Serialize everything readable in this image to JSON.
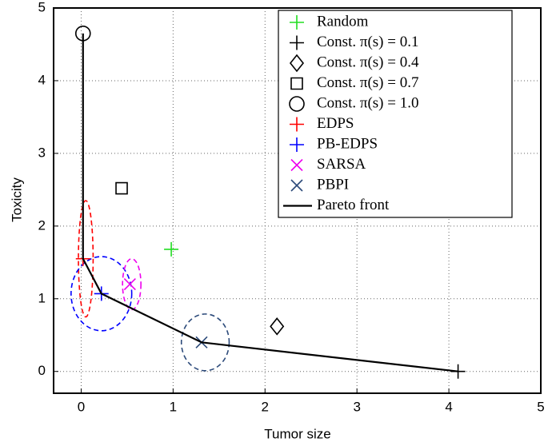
{
  "chart_data": {
    "type": "scatter",
    "xlabel": "Tumor size",
    "ylabel": "Toxicity",
    "xlim": [
      -0.3,
      5
    ],
    "ylim": [
      -0.3,
      5
    ],
    "xticks": [
      0,
      1,
      2,
      3,
      4,
      5
    ],
    "yticks": [
      0,
      1,
      2,
      3,
      4,
      5
    ],
    "grid": true,
    "legend": "upper right",
    "series": [
      {
        "name": "Random",
        "color": "#22dd22",
        "marker": "plus",
        "x": [
          0.98
        ],
        "y": [
          1.68
        ]
      },
      {
        "name": "Const. π(s) = 0.1",
        "color": "#000000",
        "marker": "plus",
        "x": [
          4.1
        ],
        "y": [
          0.0
        ]
      },
      {
        "name": "Const. π(s) = 0.4",
        "color": "#000000",
        "marker": "diamond",
        "x": [
          2.13
        ],
        "y": [
          0.62
        ]
      },
      {
        "name": "Const. π(s) = 0.7",
        "color": "#000000",
        "marker": "square",
        "x": [
          0.44
        ],
        "y": [
          2.52
        ]
      },
      {
        "name": "Const. π(s) = 1.0",
        "color": "#000000",
        "marker": "circle",
        "x": [
          0.02
        ],
        "y": [
          4.65
        ]
      },
      {
        "name": "EDPS",
        "color": "#ff0000",
        "marker": "plus",
        "x": [
          0.02
        ],
        "y": [
          1.55
        ],
        "ellipse": {
          "cx": 0.05,
          "cy": 1.55,
          "rx": 0.08,
          "ry": 0.8
        }
      },
      {
        "name": "PB-EDPS",
        "color": "#0000ff",
        "marker": "plus",
        "x": [
          0.22
        ],
        "y": [
          1.07
        ],
        "ellipse": {
          "cx": 0.22,
          "cy": 1.07,
          "rx": 0.33,
          "ry": 0.51
        }
      },
      {
        "name": "SARSA",
        "color": "#ee00ee",
        "marker": "x",
        "x": [
          0.53
        ],
        "y": [
          1.2
        ],
        "ellipse": {
          "cx": 0.55,
          "cy": 1.2,
          "rx": 0.1,
          "ry": 0.35
        }
      },
      {
        "name": "PBPI",
        "color": "#2c4a7a",
        "marker": "x",
        "x": [
          1.31
        ],
        "y": [
          0.4
        ],
        "ellipse": {
          "cx": 1.35,
          "cy": 0.4,
          "rx": 0.26,
          "ry": 0.39
        }
      },
      {
        "name": "Pareto front",
        "color": "#000000",
        "marker": "line",
        "x": [
          0.02,
          0.02,
          0.22,
          1.31,
          4.1
        ],
        "y": [
          4.65,
          1.55,
          1.07,
          0.4,
          0.0
        ]
      }
    ]
  }
}
